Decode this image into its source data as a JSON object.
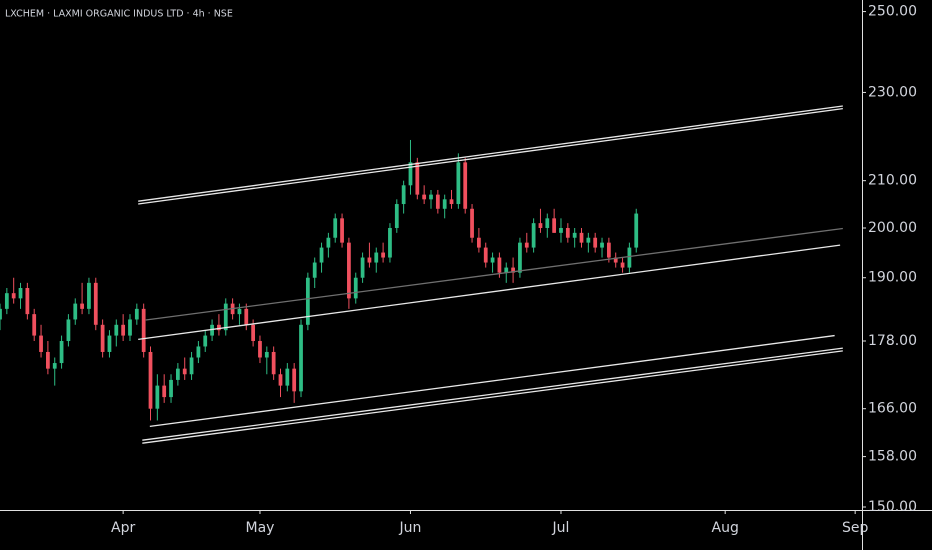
{
  "chart_data": {
    "type": "candlestick",
    "title": "LXCHEM · LAXMI ORGANIC INDUS LTD · 4h · NSE",
    "log_scale": true,
    "grid": false,
    "up_color": "#2ebd85",
    "down_color": "#f0505e",
    "ylim": [
      150,
      253
    ],
    "yticks": [
      {
        "value": 150,
        "label": "150.00"
      },
      {
        "value": 158,
        "label": "158.00"
      },
      {
        "value": 166,
        "label": "166.00"
      },
      {
        "value": 178,
        "label": "178.00"
      },
      {
        "value": 190,
        "label": "190.00"
      },
      {
        "value": 200,
        "label": "200.00"
      },
      {
        "value": 210,
        "label": "210.00"
      },
      {
        "value": 230,
        "label": "230.00"
      },
      {
        "value": 250,
        "label": "250.00"
      }
    ],
    "xlim": [
      0,
      126
    ],
    "xticks": [
      {
        "value": 18,
        "label": "Apr"
      },
      {
        "value": 38,
        "label": "May"
      },
      {
        "value": 60,
        "label": "Jun"
      },
      {
        "value": 82,
        "label": "Jul"
      },
      {
        "value": 106,
        "label": "Aug"
      },
      {
        "value": 125,
        "label": "Sep"
      }
    ],
    "ohlc": [
      [
        182,
        185,
        180,
        184
      ],
      [
        184,
        188,
        183,
        187
      ],
      [
        187,
        190,
        185,
        186
      ],
      [
        186,
        189,
        184,
        188
      ],
      [
        188,
        189,
        182,
        183
      ],
      [
        183,
        184,
        178,
        179
      ],
      [
        179,
        181,
        175,
        176
      ],
      [
        176,
        178,
        172,
        173
      ],
      [
        173,
        175,
        170,
        174
      ],
      [
        174,
        179,
        173,
        178
      ],
      [
        178,
        183,
        177,
        182
      ],
      [
        182,
        186,
        181,
        185
      ],
      [
        185,
        189,
        183,
        184
      ],
      [
        184,
        190,
        183,
        189
      ],
      [
        189,
        190,
        180,
        181
      ],
      [
        181,
        182,
        175,
        176
      ],
      [
        176,
        180,
        175,
        179
      ],
      [
        179,
        182,
        177,
        181
      ],
      [
        181,
        183,
        178,
        179
      ],
      [
        179,
        183,
        178,
        182
      ],
      [
        182,
        185,
        181,
        184
      ],
      [
        184,
        185,
        175,
        176
      ],
      [
        176,
        177,
        164,
        166
      ],
      [
        166,
        172,
        164,
        170
      ],
      [
        170,
        172,
        167,
        168
      ],
      [
        168,
        172,
        167,
        171
      ],
      [
        171,
        174,
        170,
        173
      ],
      [
        173,
        175,
        171,
        172
      ],
      [
        172,
        176,
        171,
        175
      ],
      [
        175,
        178,
        174,
        177
      ],
      [
        177,
        180,
        176,
        179
      ],
      [
        179,
        182,
        178,
        181
      ],
      [
        181,
        183,
        179,
        180
      ],
      [
        180,
        186,
        179,
        185
      ],
      [
        185,
        186,
        182,
        183
      ],
      [
        183,
        185,
        181,
        184
      ],
      [
        184,
        185,
        180,
        181
      ],
      [
        181,
        182,
        177,
        178
      ],
      [
        178,
        179,
        174,
        175
      ],
      [
        175,
        177,
        172,
        176
      ],
      [
        176,
        177,
        171,
        172
      ],
      [
        172,
        173,
        168,
        170
      ],
      [
        170,
        174,
        169,
        173
      ],
      [
        173,
        174,
        167,
        169
      ],
      [
        169,
        182,
        168,
        181
      ],
      [
        181,
        191,
        180,
        190
      ],
      [
        190,
        194,
        188,
        193
      ],
      [
        193,
        197,
        191,
        196
      ],
      [
        196,
        199,
        194,
        198
      ],
      [
        198,
        203,
        197,
        202
      ],
      [
        202,
        203,
        196,
        197
      ],
      [
        197,
        198,
        184,
        186
      ],
      [
        186,
        191,
        185,
        190
      ],
      [
        190,
        195,
        189,
        194
      ],
      [
        194,
        197,
        192,
        193
      ],
      [
        193,
        196,
        191,
        195
      ],
      [
        195,
        197,
        193,
        194
      ],
      [
        194,
        201,
        193,
        200
      ],
      [
        200,
        206,
        199,
        205
      ],
      [
        205,
        210,
        203,
        209
      ],
      [
        209,
        219,
        207,
        214
      ],
      [
        214,
        215,
        206,
        207
      ],
      [
        207,
        209,
        205,
        206
      ],
      [
        206,
        208,
        204,
        207
      ],
      [
        207,
        208,
        203,
        204
      ],
      [
        204,
        207,
        202,
        206
      ],
      [
        206,
        208,
        204,
        205
      ],
      [
        205,
        216,
        204,
        214
      ],
      [
        214,
        215,
        203,
        204
      ],
      [
        204,
        205,
        197,
        198
      ],
      [
        198,
        200,
        195,
        196
      ],
      [
        196,
        197,
        192,
        193
      ],
      [
        193,
        195,
        191,
        194
      ],
      [
        194,
        195,
        190,
        191
      ],
      [
        191,
        193,
        189,
        192
      ],
      [
        192,
        194,
        189,
        191
      ],
      [
        191,
        198,
        190,
        197
      ],
      [
        197,
        199,
        195,
        196
      ],
      [
        196,
        202,
        195,
        201
      ],
      [
        201,
        204,
        199,
        200
      ],
      [
        200,
        203,
        198,
        202
      ],
      [
        202,
        204,
        199,
        199
      ],
      [
        199,
        202,
        197,
        200
      ],
      [
        200,
        201,
        197,
        198
      ],
      [
        198,
        200,
        196,
        199
      ],
      [
        199,
        200,
        196,
        197
      ],
      [
        197,
        199,
        195,
        198
      ],
      [
        198,
        199,
        195,
        196
      ],
      [
        196,
        198,
        194,
        197
      ],
      [
        197,
        198,
        193,
        194
      ],
      [
        194,
        195,
        192,
        193
      ],
      [
        193,
        194,
        191,
        192
      ],
      [
        192,
        197,
        191,
        196
      ],
      [
        196,
        204,
        195,
        203
      ]
    ],
    "trendlines": [
      {
        "x": [
          20.2,
          123.2
        ],
        "y": [
          205.6,
          226.8
        ],
        "color": "#e8e8e8"
      },
      {
        "x": [
          20.2,
          123.2
        ],
        "y": [
          205.0,
          226.2
        ],
        "color": "#e8e8e8"
      },
      {
        "x": [
          21.3,
          123.2
        ],
        "y": [
          181.9,
          199.9
        ],
        "color": "#6f6f6f"
      },
      {
        "x": [
          20.2,
          122.8
        ],
        "y": [
          178.3,
          196.5
        ],
        "color": "#e8e8e8"
      },
      {
        "x": [
          21.9,
          122.0
        ],
        "y": [
          163.0,
          179.0
        ],
        "color": "#e8e8e8"
      },
      {
        "x": [
          20.8,
          123.2
        ],
        "y": [
          160.7,
          176.7
        ],
        "color": "#e8e8e8"
      },
      {
        "x": [
          20.8,
          123.2
        ],
        "y": [
          160.2,
          176.2
        ],
        "color": "#e8e8e8"
      }
    ]
  }
}
